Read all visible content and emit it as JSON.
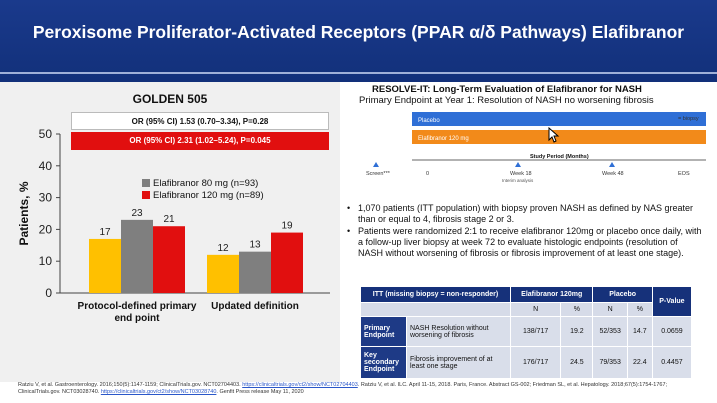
{
  "header": {
    "title": "Peroxisome Proliferator-Activated Receptors (PPAR α/δ Pathways) Elafibranor"
  },
  "left": {
    "chart_title": "GOLDEN 505",
    "or_80": "OR (95% CI) 1.53 (0.70–3.34), P=0.28",
    "or_120": "OR (95% CI) 2.31 (1.02–5.24), P=0.045"
  },
  "chart_data": {
    "type": "bar",
    "title": "GOLDEN 505",
    "ylabel": "Patients, %",
    "xlabel": "",
    "ylim": [
      0,
      50
    ],
    "yticks": [
      0,
      10,
      20,
      30,
      40,
      50
    ],
    "categories": [
      "Protocol-defined primary end point",
      "Updated definition"
    ],
    "category_lines": [
      [
        "Protocol-defined primary",
        "end point"
      ],
      [
        "Updated definition"
      ]
    ],
    "series": [
      {
        "name": "",
        "color": "#ffc000",
        "values": [
          17,
          12
        ],
        "labels": [
          "17",
          "12"
        ]
      },
      {
        "name": "Elafibranor 80 mg (n=93)",
        "color": "#7f7f7f",
        "values": [
          23,
          13
        ],
        "labels": [
          "23",
          "13"
        ]
      },
      {
        "name": "Elafibranor 120 mg (n=89)",
        "color": "#e10f0f",
        "values": [
          21,
          19
        ],
        "labels": [
          "21",
          "19"
        ]
      }
    ],
    "legend_placement": "top-right",
    "grid": false
  },
  "right": {
    "title": "RESOLVE-IT:  Long-Term Evaluation of Elafibranor for NASH",
    "subtitle": "Primary Endpoint at Year 1: Resolution of NASH no worsening fibrosis",
    "study": {
      "placebo_label": "Placebo",
      "elafibranor_label": "Elafibranor 120 mg",
      "biopsy_legend": "= biopsy",
      "axis_title": "Study Period (Months)",
      "screen_label": "Screen***",
      "zero_label": "0",
      "week18_label": "Week 18",
      "interim_label": "Interim analysis",
      "week48_label": "Week 48",
      "eos_label": "EOS",
      "placebo_color": "#2f6fd6",
      "elafibranor_color": "#f28a1a"
    },
    "bullets": [
      "1,070 patients (ITT population) with biopsy proven NASH as defined by NAS greater than or equal to 4, fibrosis stage 2 or 3.",
      "Patients were randomized 2:1 to receive elafibranor 120mg or placebo once daily, with a follow-up liver biopsy at week 72 to evaluate histologic endpoints (resolution of NASH without worsening of fibrosis or fibrosis improvement of at least one stage)."
    ],
    "table": {
      "head": "ITT (missing biopsy = non-responder)",
      "col_elaf": "Elafibranor 120mg",
      "col_placebo": "Placebo",
      "col_p": "P-Value",
      "sub_n": "N",
      "sub_pct": "%",
      "rows": [
        {
          "label": "Primary Endpoint",
          "desc": "NASH Resolution without worsening of fibrosis",
          "elaf_n": "138/717",
          "elaf_pct": "19.2",
          "plc_n": "52/353",
          "plc_pct": "14.7",
          "p": "0.0659"
        },
        {
          "label": "Key secondary Endpoint",
          "desc": "Fibrosis improvement of at least one stage",
          "elaf_n": "176/717",
          "elaf_pct": "24.5",
          "plc_n": "79/353",
          "plc_pct": "22.4",
          "p": "0.4457"
        }
      ]
    }
  },
  "footer": {
    "text1": "Ratziu V, et al. Gastroenterology. 2016;150(5):1147-1159; ClinicalTrials.gov. NCT02704403. ",
    "link1": "https://clinicaltrials.gov/ct2/show/NCT02704403",
    "text2": ". Ratziu V, et al. ILC. April 11-15, 2018. Paris, France. Abstract GS-002; Friedman SL, et al. Hepatology. 2018;67(5):1754-1767; ClinicalTrials.gov. NCT03028740. ",
    "link2": "https://clinicaltrials.gov/ct2/show/NCT03028740",
    "text3": ". Genfit Press release May 11, 2020"
  }
}
